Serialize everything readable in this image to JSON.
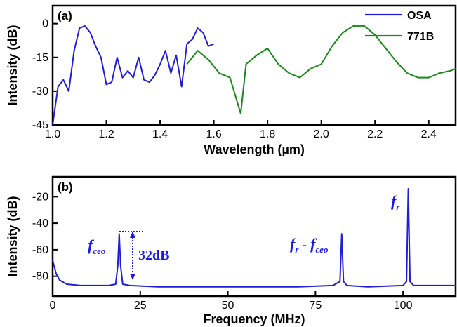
{
  "chart_data": [
    {
      "type": "line",
      "panel_label": "(a)",
      "xlabel": "Wavelength (µm)",
      "ylabel": "Intensity (dB)",
      "xlim": [
        1.0,
        2.5
      ],
      "ylim": [
        -45,
        8
      ],
      "x_ticks": [
        1.0,
        1.2,
        1.4,
        1.6,
        1.8,
        2.0,
        2.2,
        2.4
      ],
      "x_tick_labels": [
        "1.0",
        "1.2",
        "1.4",
        "1.6",
        "1.8",
        "2.0",
        "2.2",
        "2.4"
      ],
      "y_ticks": [
        0,
        -15,
        -30,
        -45
      ],
      "y_tick_labels": [
        "0",
        "-15",
        "-30",
        "-45"
      ],
      "legend_position": "top-right",
      "series": [
        {
          "name": "OSA",
          "color": "#1f1fd6",
          "x": [
            1.0,
            1.02,
            1.04,
            1.06,
            1.08,
            1.1,
            1.12,
            1.14,
            1.16,
            1.18,
            1.2,
            1.22,
            1.24,
            1.26,
            1.28,
            1.3,
            1.32,
            1.34,
            1.36,
            1.38,
            1.4,
            1.42,
            1.44,
            1.46,
            1.48,
            1.5,
            1.52,
            1.54,
            1.56,
            1.58,
            1.6
          ],
          "y": [
            -45,
            -28,
            -25,
            -30,
            -12,
            -2,
            -1,
            -4,
            -10,
            -15,
            -27,
            -26,
            -15,
            -24,
            -21,
            -24,
            -15,
            -25,
            -26,
            -23,
            -18,
            -12,
            -22,
            -14,
            -28,
            -9,
            -7,
            -2,
            -4,
            -10,
            -9
          ]
        },
        {
          "name": "771B",
          "color": "#1a8a1a",
          "x": [
            1.5,
            1.54,
            1.58,
            1.62,
            1.66,
            1.7,
            1.72,
            1.76,
            1.8,
            1.84,
            1.88,
            1.92,
            1.96,
            2.0,
            2.04,
            2.08,
            2.12,
            2.16,
            2.2,
            2.24,
            2.28,
            2.32,
            2.36,
            2.4,
            2.44,
            2.48,
            2.5
          ],
          "y": [
            -18,
            -12,
            -16,
            -22,
            -24,
            -40,
            -18,
            -14,
            -11,
            -18,
            -22,
            -24,
            -20,
            -18,
            -10,
            -4,
            -1,
            -1,
            -5,
            -11,
            -17,
            -22,
            -24,
            -24,
            -22,
            -21,
            -20
          ]
        }
      ]
    },
    {
      "type": "line",
      "panel_label": "(b)",
      "xlabel": "Frequency (MHz)",
      "ylabel": "Intensity (dB)",
      "xlim": [
        0,
        115
      ],
      "ylim": [
        -95,
        -5
      ],
      "x_ticks": [
        0,
        25,
        50,
        75,
        100
      ],
      "x_tick_labels": [
        "0",
        "25",
        "50",
        "75",
        "100"
      ],
      "y_ticks": [
        -20,
        -40,
        -60,
        -80
      ],
      "y_tick_labels": [
        "-20",
        "-40",
        "-60",
        "-80"
      ],
      "series": [
        {
          "name": "",
          "color": "#1f1fd6",
          "x": [
            0,
            1,
            2,
            4,
            8,
            12,
            16,
            18,
            18.6,
            19,
            19.4,
            20,
            22,
            30,
            40,
            50,
            60,
            70,
            80,
            82,
            82.5,
            83,
            84,
            90,
            100,
            101,
            101.5,
            102,
            103,
            110,
            115
          ],
          "y": [
            -68,
            -78,
            -83,
            -86,
            -87,
            -87,
            -87,
            -86,
            -72,
            -48,
            -72,
            -86,
            -87,
            -88,
            -88,
            -88,
            -88,
            -88,
            -87,
            -84,
            -48,
            -84,
            -87,
            -88,
            -87,
            -84,
            -14,
            -84,
            -87,
            -87,
            -87
          ]
        }
      ],
      "annotations": {
        "fceo_main": "f",
        "fceo_sub": "ceo",
        "diff_fr_main": "f",
        "diff_fr_sub": "r",
        "diff_dash": " - ",
        "diff_fceo_main": "f",
        "diff_fceo_sub": "ceo",
        "fr_main": "f",
        "fr_sub": "r",
        "db_text": "32dB"
      }
    }
  ]
}
